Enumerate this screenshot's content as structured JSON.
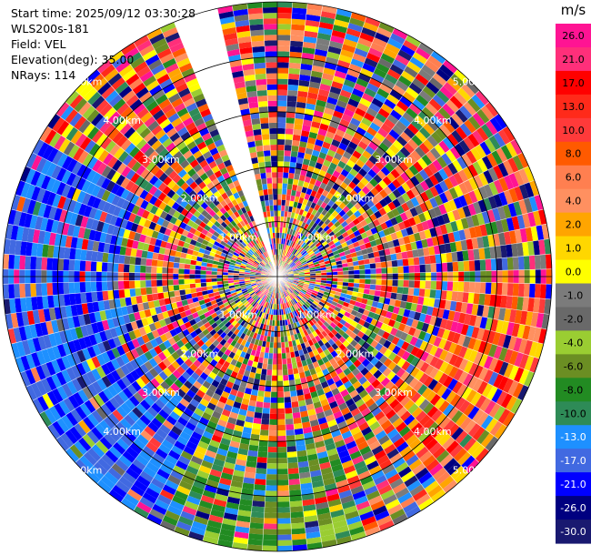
{
  "header": {
    "start_time": "Start time: 2025/09/12 03:30:28",
    "instrument": "WLS200s-181",
    "field": "Field: VEL",
    "elevation": "Elevation(deg): 35.00",
    "nrays": "NRays: 114"
  },
  "chart_data": {
    "type": "heatmap",
    "projection": "polar",
    "title": "",
    "field": "VEL",
    "units": "m/s",
    "elevation_deg": 35.0,
    "n_rays": 114,
    "max_range_km": 5.0,
    "range_ring_labels": [
      "1.00km",
      "2.00km",
      "3.00km",
      "4.00km",
      "5.00km"
    ],
    "missing_sector_deg": [
      338,
      346
    ],
    "colorbar": {
      "labels": [
        "26.0",
        "21.0",
        "17.0",
        "13.0",
        "10.0",
        "8.0",
        "6.0",
        "4.0",
        "2.0",
        "1.0",
        "0.0",
        "-1.0",
        "-2.0",
        "-4.0",
        "-6.0",
        "-8.0",
        "-10.0",
        "-13.0",
        "-17.0",
        "-21.0",
        "-26.0",
        "-30.0"
      ],
      "colors": [
        "#ff1493",
        "#ff2f7a",
        "#ff0000",
        "#ff2a1a",
        "#ff3a3a",
        "#ff5a00",
        "#ff7f50",
        "#ff9060",
        "#ffa500",
        "#ffd700",
        "#ffff00",
        "#7b7b7b",
        "#696969",
        "#9acd32",
        "#6b8e23",
        "#228b22",
        "#2e8b57",
        "#1e90ff",
        "#4169e1",
        "#0000ff",
        "#000080",
        "#191970"
      ]
    },
    "field_pattern": [
      {
        "from_deg": 330,
        "to_deg": 360,
        "note": "noisy"
      },
      {
        "from_deg": 0,
        "to_deg": 200,
        "note": "noisy with red/orange cluster near 100-130 deg"
      },
      {
        "from_deg": 200,
        "to_deg": 300,
        "note": "predominantly negative (blue) velocities at far range"
      }
    ]
  }
}
